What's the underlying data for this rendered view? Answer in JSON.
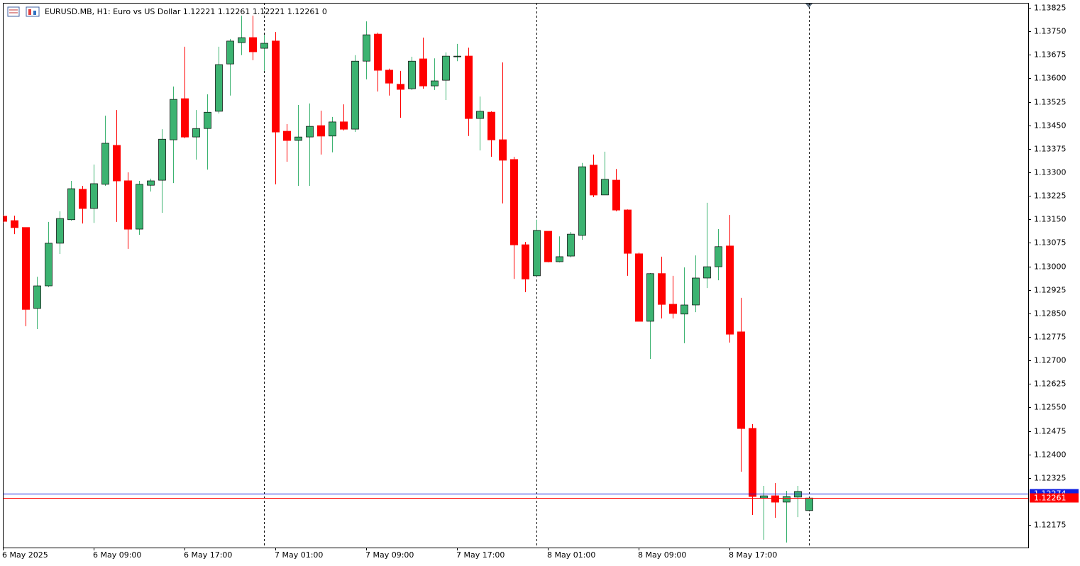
{
  "chart_data": {
    "type": "candlestick",
    "title": "EURUSD.MB, H1:  Euro vs US Dollar  1.12221 1.12261 1.12221 1.12261  0",
    "categories": [
      "6 May 2025",
      null,
      null,
      null,
      null,
      null,
      null,
      null,
      "6 May 09:00",
      null,
      null,
      null,
      null,
      null,
      null,
      null,
      "6 May 17:00",
      null,
      null,
      null,
      null,
      null,
      null,
      null,
      "7 May 01:00",
      null,
      null,
      null,
      null,
      null,
      null,
      null,
      "7 May 09:00",
      null,
      null,
      null,
      null,
      null,
      null,
      null,
      "7 May 17:00",
      null,
      null,
      null,
      null,
      null,
      null,
      null,
      "8 May 01:00",
      null,
      null,
      null,
      null,
      null,
      null,
      null,
      "8 May 09:00",
      null,
      null,
      null,
      null,
      null,
      null,
      null,
      "8 May 17:00",
      null,
      null,
      null,
      null,
      null,
      null,
      null
    ],
    "open": [
      1.1316,
      1.13146,
      1.13124,
      1.12866,
      1.12938,
      1.13074,
      1.13149,
      1.13246,
      1.13185,
      1.13262,
      1.13386,
      1.13273,
      1.13119,
      1.13259,
      1.13275,
      1.13404,
      1.13535,
      1.13413,
      1.1344,
      1.13495,
      1.13646,
      1.13714,
      1.1373,
      1.13696,
      1.13719,
      1.13431,
      1.13402,
      1.13413,
      1.13449,
      1.13416,
      1.13461,
      1.13438,
      1.13655,
      1.13741,
      1.13626,
      1.13581,
      1.13567,
      1.13662,
      1.13576,
      1.13594,
      1.13669,
      1.13671,
      1.13472,
      1.13492,
      1.13404,
      1.13341,
      1.13069,
      1.1297,
      1.13112,
      1.13015,
      1.13033,
      1.13099,
      1.13323,
      1.13228,
      1.13275,
      1.1318,
      1.1304,
      1.12825,
      1.12977,
      1.12879,
      1.12848,
      1.12877,
      1.12963,
      1.12999,
      1.13065,
      1.12791,
      1.12483,
      1.12261,
      1.12268,
      1.12248,
      1.12264,
      1.12221
    ],
    "high": [
      1.13164,
      1.13162,
      1.13124,
      1.12967,
      1.13142,
      1.13176,
      1.13273,
      1.13257,
      1.13325,
      1.13481,
      1.13499,
      1.133,
      1.13273,
      1.1328,
      1.13438,
      1.13574,
      1.13701,
      1.13499,
      1.13549,
      1.13701,
      1.13726,
      1.138,
      1.138,
      1.13739,
      1.13748,
      1.13454,
      1.13515,
      1.1352,
      1.13497,
      1.13477,
      1.13517,
      1.13674,
      1.13782,
      1.13746,
      1.13631,
      1.13624,
      1.13669,
      1.1373,
      1.13664,
      1.13683,
      1.1371,
      1.13698,
      1.13542,
      1.13495,
      1.13651,
      1.1335,
      1.13078,
      1.13149,
      1.13112,
      1.13096,
      1.1311,
      1.1333,
      1.13357,
      1.13366,
      1.13311,
      1.13182,
      1.13044,
      1.12979,
      1.13031,
      1.1297,
      1.12997,
      1.13035,
      1.13203,
      1.13119,
      1.13164,
      1.129,
      1.12497,
      1.123,
      1.12309,
      1.12284,
      1.123,
      1.12261
    ],
    "low": [
      1.13139,
      1.13103,
      1.12809,
      1.128,
      1.12934,
      1.1304,
      1.13146,
      1.13137,
      1.13139,
      1.13257,
      1.13142,
      1.13056,
      1.13101,
      1.13239,
      1.13171,
      1.13266,
      1.13409,
      1.13341,
      1.13309,
      1.13488,
      1.13545,
      1.13674,
      1.13658,
      1.13624,
      1.13262,
      1.13334,
      1.13257,
      1.13257,
      1.13357,
      1.13364,
      1.13434,
      1.13429,
      1.13597,
      1.13558,
      1.13545,
      1.13474,
      1.13563,
      1.13567,
      1.13563,
      1.13531,
      1.13655,
      1.13416,
      1.1337,
      1.1335,
      1.13201,
      1.1296,
      1.12918,
      1.12967,
      1.13013,
      1.13013,
      1.13029,
      1.13085,
      1.13221,
      1.13228,
      1.13176,
      1.1297,
      1.12825,
      1.12705,
      1.12834,
      1.12834,
      1.12755,
      1.12854,
      1.12931,
      1.12956,
      1.12757,
      1.12345,
      1.12207,
      1.12128,
      1.12198,
      1.12119,
      1.122,
      1.12221
    ],
    "close": [
      1.13144,
      1.13124,
      1.12863,
      1.12938,
      1.13074,
      1.13153,
      1.13248,
      1.13185,
      1.13264,
      1.13393,
      1.13273,
      1.13119,
      1.13262,
      1.13273,
      1.13406,
      1.13533,
      1.13413,
      1.1344,
      1.13492,
      1.13644,
      1.13719,
      1.1373,
      1.13685,
      1.13712,
      1.13429,
      1.13402,
      1.13413,
      1.13447,
      1.13416,
      1.13461,
      1.13438,
      1.13655,
      1.13739,
      1.13626,
      1.13585,
      1.13565,
      1.13655,
      1.13576,
      1.13592,
      1.13671,
      1.13671,
      1.13472,
      1.13495,
      1.13404,
      1.13339,
      1.13069,
      1.1296,
      1.13115,
      1.13015,
      1.13031,
      1.13103,
      1.13318,
      1.13228,
      1.13278,
      1.1318,
      1.13042,
      1.12825,
      1.12977,
      1.12879,
      1.1285,
      1.12877,
      1.12963,
      1.12999,
      1.13063,
      1.12784,
      1.12483,
      1.12266,
      1.12268,
      1.12248,
      1.12266,
      1.12282,
      1.12261
    ],
    "up_color": "#3cb371",
    "down_color": "#ff0000",
    "ylim": [
      1.12103,
      1.13841
    ],
    "yticks": [
      1.13825,
      {
        "value": 1.1375,
        "label": "1.13750"
      },
      1.13675,
      {
        "value": 1.136,
        "label": "1.13600"
      },
      1.13525,
      {
        "value": 1.1345,
        "label": "1.13450"
      },
      1.13375,
      {
        "value": 1.133,
        "label": "1.13300"
      },
      1.13225,
      {
        "value": 1.1315,
        "label": "1.13150"
      },
      1.13075,
      {
        "value": 1.13,
        "label": "1.13000"
      },
      1.12925,
      {
        "value": 1.1285,
        "label": "1.12850"
      },
      1.12775,
      {
        "value": 1.127,
        "label": "1.12700"
      },
      1.12625,
      {
        "value": 1.1255,
        "label": "1.12550"
      },
      1.12475,
      {
        "value": 1.124,
        "label": "1.12400"
      },
      1.12325,
      1.12175
    ],
    "ask": {
      "value": 1.12274,
      "color": "#1020e0"
    },
    "bid": {
      "value": 1.12261,
      "color": "#ff0000"
    },
    "period_separators": true
  }
}
